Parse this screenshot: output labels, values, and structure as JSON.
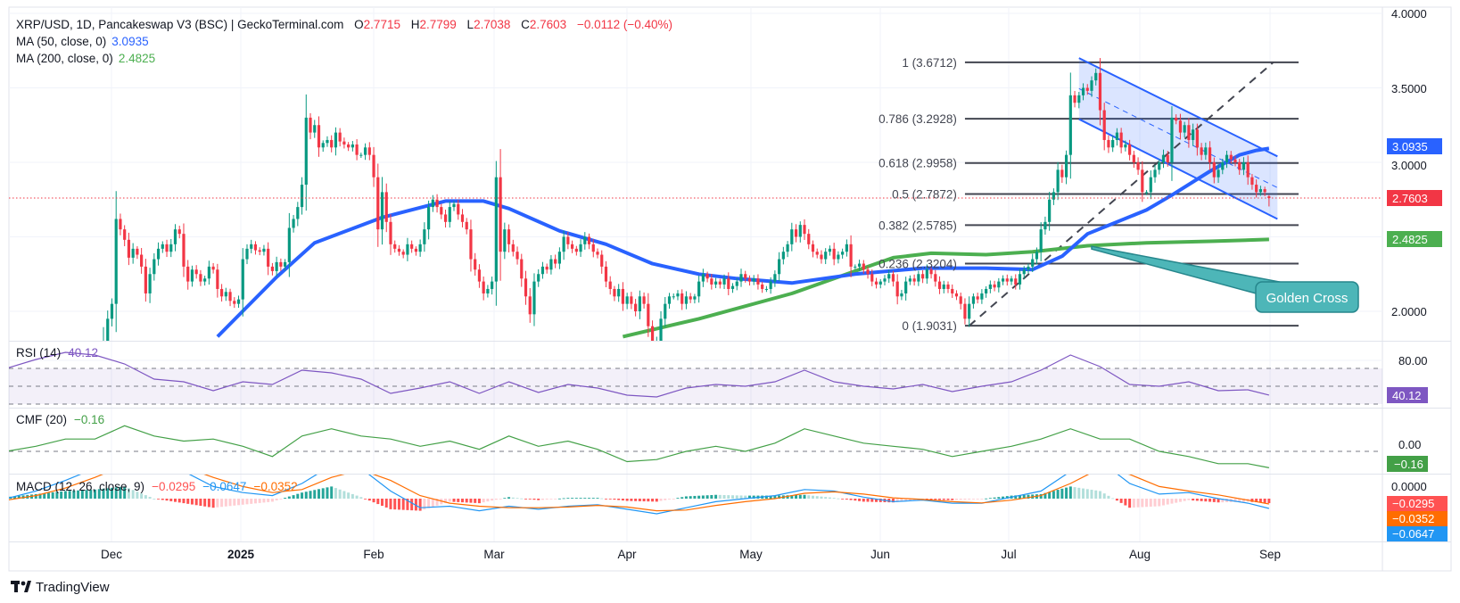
{
  "header": {
    "symbol": "XRP/USD, 1D, Pancakeswap V3 (BSC) | GeckoTerminal.com",
    "o_label": "O",
    "o": "2.7715",
    "h_label": "H",
    "h": "2.7799",
    "l_label": "L",
    "l": "2.7038",
    "c_label": "C",
    "c": "2.7603",
    "change": "−0.0112 (−0.40%)"
  },
  "ma50": {
    "label": "MA (50, close, 0)",
    "value": "3.0935",
    "color": "#2962ff"
  },
  "ma200": {
    "label": "MA (200, close, 0)",
    "value": "2.4825",
    "color": "#4caf50"
  },
  "last_price": {
    "value": "2.7603",
    "color": "#f23645"
  },
  "price_axis": {
    "ticks": [
      "4.0000",
      "3.5000",
      "3.0000",
      "2.0000"
    ]
  },
  "rsi": {
    "label": "RSI (14)",
    "value": "40.12",
    "axis_tick": "80.00",
    "color": "#7e57c2"
  },
  "cmf": {
    "label": "CMF (20)",
    "value": "−0.16",
    "axis_tick": "0.00",
    "color": "#43a047"
  },
  "macd": {
    "label": "MACD (12, 26, close, 9)",
    "hist_value": "−0.0295",
    "macd_value": "−0.0647",
    "signal_value": "−0.0352",
    "axis_tick": "0.0000",
    "hist_color": "#ff5252",
    "macd_color": "#2196f3",
    "signal_color": "#ff6d00"
  },
  "time_axis": {
    "labels": [
      "Dec",
      "2025",
      "Feb",
      "Mar",
      "Apr",
      "May",
      "Jun",
      "Jul",
      "Aug",
      "Sep"
    ]
  },
  "fib": {
    "levels": [
      {
        "text": "1 (3.6712)",
        "price": 3.6712
      },
      {
        "text": "0.786 (3.2928)",
        "price": 3.2928
      },
      {
        "text": "0.618 (2.9958)",
        "price": 2.9958
      },
      {
        "text": "0.5 (2.7872)",
        "price": 2.7872
      },
      {
        "text": "0.382 (2.5785)",
        "price": 2.5785
      },
      {
        "text": "0.236 (2.3204)",
        "price": 2.3204
      },
      {
        "text": "0 (1.9031)",
        "price": 1.9031
      }
    ]
  },
  "annotation": {
    "text": "Golden Cross",
    "color": "#4db6b8"
  },
  "brand": {
    "text": "TradingView"
  },
  "colors": {
    "up": "#089981",
    "down": "#f23645",
    "channel": "#2962ff"
  },
  "chart_data": {
    "type": "candlestick",
    "title": "XRP/USD, 1D, Pancakeswap V3 (BSC) | GeckoTerminal.com",
    "ylim": [
      1.83,
      4.05
    ],
    "grid": true,
    "candles": {
      "start_date": "2024-11-26",
      "close": [
        1.4,
        1.43,
        1.5,
        1.78,
        1.95,
        2.05,
        2.62,
        2.55,
        2.48,
        2.36,
        2.42,
        2.38,
        2.3,
        2.12,
        2.25,
        2.35,
        2.42,
        2.45,
        2.4,
        2.45,
        2.55,
        2.52,
        2.3,
        2.2,
        2.28,
        2.25,
        2.2,
        2.22,
        2.3,
        2.28,
        2.15,
        2.1,
        2.13,
        2.07,
        2.05,
        2.08,
        2.35,
        2.42,
        2.45,
        2.41,
        2.4,
        2.42,
        2.3,
        2.27,
        2.33,
        2.3,
        2.33,
        2.56,
        2.62,
        2.7,
        2.85,
        3.3,
        3.2,
        3.25,
        3.1,
        3.13,
        3.15,
        3.1,
        3.2,
        3.14,
        3.12,
        3.1,
        3.12,
        3.05,
        3.05,
        3.1,
        3.05,
        2.9,
        2.55,
        2.8,
        2.6,
        2.45,
        2.42,
        2.4,
        2.38,
        2.45,
        2.42,
        2.4,
        2.45,
        2.55,
        2.7,
        2.75,
        2.7,
        2.65,
        2.6,
        2.7,
        2.72,
        2.65,
        2.6,
        2.55,
        2.35,
        2.28,
        2.2,
        2.12,
        2.15,
        2.2,
        2.9,
        2.4,
        2.55,
        2.45,
        2.4,
        2.35,
        2.22,
        2.1,
        1.98,
        2.2,
        2.25,
        2.3,
        2.28,
        2.35,
        2.32,
        2.4,
        2.5,
        2.45,
        2.42,
        2.4,
        2.45,
        2.5,
        2.45,
        2.4,
        2.38,
        2.3,
        2.2,
        2.15,
        2.1,
        2.15,
        2.05,
        2.1,
        2.05,
        2.0,
        2.1,
        2.05,
        1.9,
        1.75,
        1.8,
        1.95,
        2.05,
        2.1,
        2.1,
        2.12,
        2.05,
        2.1,
        2.08,
        2.1,
        2.2,
        2.25,
        2.22,
        2.18,
        2.2,
        2.18,
        2.22,
        2.15,
        2.17,
        2.2,
        2.25,
        2.22,
        2.2,
        2.22,
        2.18,
        2.15,
        2.15,
        2.2,
        2.25,
        2.35,
        2.4,
        2.45,
        2.55,
        2.5,
        2.58,
        2.52,
        2.45,
        2.4,
        2.38,
        2.35,
        2.4,
        2.42,
        2.35,
        2.38,
        2.4,
        2.45,
        2.3,
        2.3,
        2.32,
        2.28,
        2.25,
        2.2,
        2.18,
        2.2,
        2.22,
        2.25,
        2.2,
        2.1,
        2.12,
        2.2,
        2.22,
        2.2,
        2.25,
        2.22,
        2.28,
        2.25,
        2.2,
        2.15,
        2.18,
        2.15,
        2.12,
        2.1,
        2.05,
        1.95,
        2.05,
        2.1,
        2.08,
        2.12,
        2.15,
        2.18,
        2.16,
        2.2,
        2.22,
        2.2,
        2.22,
        2.18,
        2.25,
        2.28,
        2.3,
        2.35,
        2.4,
        2.55,
        2.6,
        2.75,
        2.8,
        2.95,
        2.9,
        3.05,
        3.45,
        3.4,
        3.45,
        3.5,
        3.48,
        3.55,
        3.6,
        3.35,
        3.15,
        3.1,
        3.15,
        3.2,
        3.1,
        3.12,
        3.05,
        3.0,
        2.95,
        2.8,
        2.8,
        2.9,
        2.95,
        3.0,
        3.05,
        3.0,
        3.3,
        3.28,
        3.2,
        3.25,
        3.15,
        3.22,
        3.1,
        3.05,
        3.1,
        3.0,
        2.9,
        2.95,
        3.0,
        3.05,
        3.02,
        3.0,
        2.95,
        3.0,
        2.9,
        2.85,
        2.8,
        2.82,
        2.8,
        2.7603
      ],
      "last": {
        "open": 2.7715,
        "high": 2.7799,
        "low": 2.7038,
        "close": 2.7603
      }
    },
    "ma50": [
      [
        "2024-12-26",
        1.83
      ],
      [
        "2025-01-09",
        2.23
      ],
      [
        "2025-01-18",
        2.46
      ],
      [
        "2025-02-03",
        2.63
      ],
      [
        "2025-02-18",
        2.74
      ],
      [
        "2025-02-27",
        2.74
      ],
      [
        "2025-03-05",
        2.69
      ],
      [
        "2025-03-17",
        2.54
      ],
      [
        "2025-03-28",
        2.45
      ],
      [
        "2025-04-08",
        2.32
      ],
      [
        "2025-04-19",
        2.25
      ],
      [
        "2025-04-28",
        2.22
      ],
      [
        "2025-05-11",
        2.19
      ],
      [
        "2025-05-26",
        2.25
      ],
      [
        "2025-06-11",
        2.29
      ],
      [
        "2025-06-26",
        2.29
      ],
      [
        "2025-07-07",
        2.28
      ],
      [
        "2025-07-14",
        2.37
      ],
      [
        "2025-07-20",
        2.52
      ],
      [
        "2025-08-03",
        2.68
      ],
      [
        "2025-08-09",
        2.78
      ],
      [
        "2025-08-18",
        2.94
      ],
      [
        "2025-08-25",
        3.05
      ],
      [
        "2025-08-29",
        3.08
      ],
      [
        "2025-09-01",
        3.0935
      ]
    ],
    "ma200": [
      [
        "2025-04-01",
        1.83
      ],
      [
        "2025-04-19",
        1.95
      ],
      [
        "2025-05-11",
        2.12
      ],
      [
        "2025-05-26",
        2.27
      ],
      [
        "2025-06-04",
        2.36
      ],
      [
        "2025-06-13",
        2.39
      ],
      [
        "2025-06-26",
        2.38
      ],
      [
        "2025-07-07",
        2.4
      ],
      [
        "2025-07-20",
        2.44
      ],
      [
        "2025-08-03",
        2.46
      ],
      [
        "2025-08-18",
        2.47
      ],
      [
        "2025-09-01",
        2.4825
      ]
    ],
    "channel": {
      "upper": [
        [
          "2025-07-18",
          3.7
        ],
        [
          "2025-09-03",
          3.04
        ]
      ],
      "lower": [
        [
          "2025-07-18",
          3.29
        ],
        [
          "2025-09-03",
          2.62
        ]
      ]
    },
    "trendline": [
      [
        "2025-06-22",
        1.9031
      ],
      [
        "2025-09-02",
        3.6712
      ]
    ],
    "fib_range": [
      [
        "2025-06-21"
      ],
      [
        "2025-09-08"
      ]
    ],
    "golden_cross": [
      "2025-07-21",
      2.43
    ],
    "indicators": {
      "dates": [
        "2024-11-06",
        "2024-11-13",
        "2024-11-20",
        "2024-11-27",
        "2024-12-04",
        "2024-12-11",
        "2024-12-18",
        "2024-12-25",
        "2025-01-01",
        "2025-01-08",
        "2025-01-15",
        "2025-01-22",
        "2025-01-29",
        "2025-02-05",
        "2025-02-12",
        "2025-02-19",
        "2025-02-26",
        "2025-03-05",
        "2025-03-12",
        "2025-03-19",
        "2025-03-26",
        "2025-04-02",
        "2025-04-09",
        "2025-04-16",
        "2025-04-23",
        "2025-04-30",
        "2025-05-07",
        "2025-05-14",
        "2025-05-21",
        "2025-05-28",
        "2025-06-04",
        "2025-06-11",
        "2025-06-18",
        "2025-06-25",
        "2025-07-02",
        "2025-07-09",
        "2025-07-16",
        "2025-07-23",
        "2025-07-30",
        "2025-08-06",
        "2025-08-13",
        "2025-08-20",
        "2025-08-27",
        "2025-09-01"
      ],
      "rsi": [
        70,
        80,
        88,
        85,
        75,
        58,
        55,
        45,
        55,
        52,
        68,
        65,
        58,
        42,
        48,
        55,
        42,
        55,
        43,
        52,
        48,
        40,
        38,
        48,
        52,
        50,
        55,
        68,
        55,
        50,
        47,
        52,
        44,
        50,
        55,
        68,
        85,
        72,
        52,
        50,
        55,
        45,
        46,
        40.12
      ],
      "cmf": [
        0.0,
        0.05,
        0.12,
        0.12,
        0.25,
        0.15,
        0.1,
        0.12,
        0.05,
        -0.05,
        0.15,
        0.22,
        0.15,
        0.12,
        0.05,
        0.1,
        0.02,
        0.15,
        0.05,
        0.1,
        0.02,
        -0.1,
        -0.08,
        0.0,
        0.05,
        0.0,
        0.08,
        0.22,
        0.15,
        0.08,
        0.05,
        0.02,
        -0.05,
        0.0,
        0.05,
        0.12,
        0.22,
        0.12,
        0.12,
        0.0,
        -0.05,
        -0.12,
        -0.12,
        -0.16
      ],
      "macd": [
        0.0,
        0.05,
        0.12,
        0.2,
        0.3,
        0.25,
        0.18,
        0.08,
        0.04,
        0.02,
        0.1,
        0.22,
        0.2,
        0.05,
        -0.06,
        -0.05,
        -0.08,
        -0.05,
        -0.07,
        -0.05,
        -0.04,
        -0.07,
        -0.1,
        -0.06,
        -0.02,
        0.0,
        0.02,
        0.06,
        0.05,
        0.01,
        -0.02,
        -0.01,
        -0.03,
        -0.03,
        0.01,
        0.05,
        0.18,
        0.25,
        0.1,
        0.03,
        0.04,
        0.0,
        -0.03,
        -0.0647
      ],
      "signal": [
        -0.01,
        0.02,
        0.07,
        0.14,
        0.22,
        0.25,
        0.21,
        0.14,
        0.08,
        0.04,
        0.06,
        0.14,
        0.19,
        0.12,
        0.02,
        -0.03,
        -0.05,
        -0.06,
        -0.06,
        -0.055,
        -0.045,
        -0.055,
        -0.08,
        -0.075,
        -0.045,
        -0.02,
        0.0,
        0.035,
        0.045,
        0.03,
        0.005,
        -0.005,
        -0.02,
        -0.028,
        -0.01,
        0.02,
        0.1,
        0.2,
        0.16,
        0.08,
        0.05,
        0.025,
        -0.01,
        -0.0352
      ]
    }
  }
}
